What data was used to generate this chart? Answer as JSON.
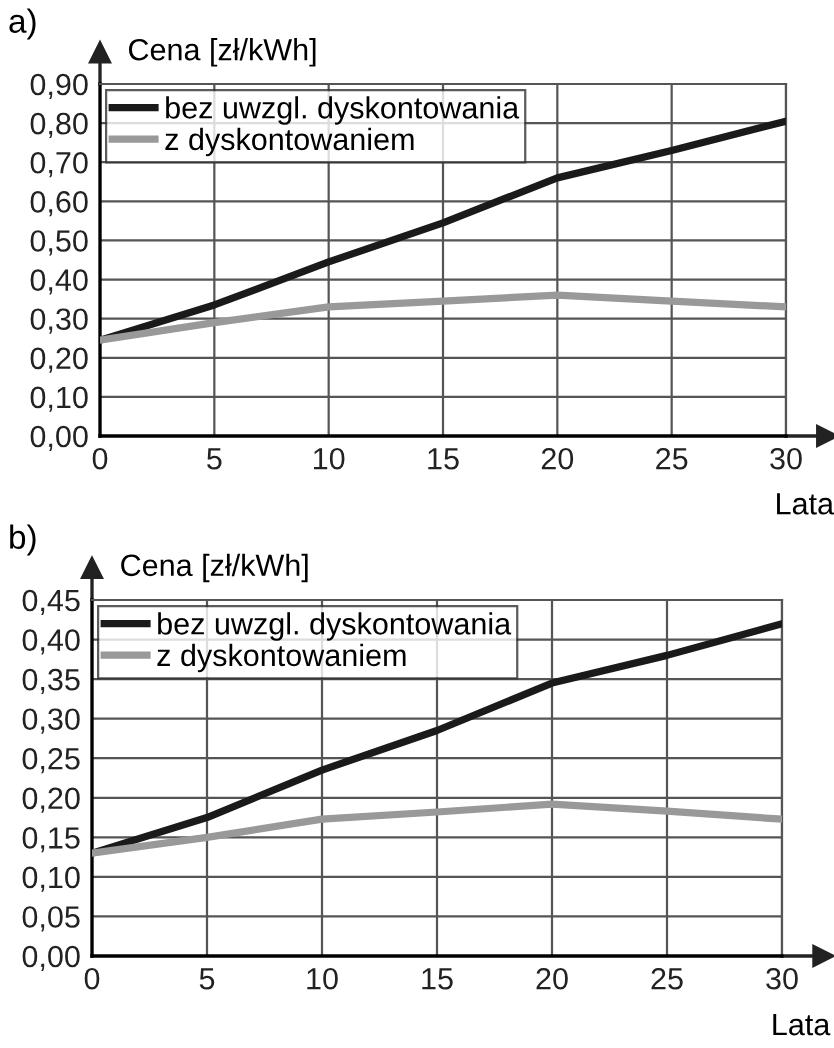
{
  "chart_data": [
    {
      "type": "line",
      "title": "a)",
      "ylabel": "Cena [zł/kWh]",
      "xlabel": "Lata",
      "x": [
        0,
        5,
        10,
        15,
        20,
        25,
        30
      ],
      "series": [
        {
          "name": "bez uwzgl. dyskontowania",
          "color": "#1a1a1a",
          "values": [
            0.245,
            0.335,
            0.445,
            0.545,
            0.66,
            0.73,
            0.805
          ]
        },
        {
          "name": "z dyskontowaniem",
          "color": "#999999",
          "values": [
            0.245,
            0.29,
            0.33,
            0.345,
            0.36,
            0.345,
            0.33
          ]
        }
      ],
      "xlim": [
        0,
        30
      ],
      "xticks": [
        0,
        5,
        10,
        15,
        20,
        25,
        30
      ],
      "ylim": [
        0,
        0.9
      ],
      "yticks": [
        {
          "value": 0,
          "label": "0,00"
        },
        {
          "value": 0.1,
          "label": "0,10"
        },
        {
          "value": 0.2,
          "label": "0,20"
        },
        {
          "value": 0.3,
          "label": "0,30"
        },
        {
          "value": 0.4,
          "label": "0,40"
        },
        {
          "value": 0.5,
          "label": "0,50"
        },
        {
          "value": 0.6,
          "label": "0,60"
        },
        {
          "value": 0.7,
          "label": "0,70"
        },
        {
          "value": 0.8,
          "label": "0,80"
        },
        {
          "value": 0.9,
          "label": "0,90"
        }
      ],
      "grid": true,
      "legend": "top left",
      "marker": "none",
      "line_style": "solid"
    },
    {
      "type": "line",
      "title": "b)",
      "ylabel": "Cena [zł/kWh]",
      "xlabel": "Lata",
      "x": [
        0,
        5,
        10,
        15,
        20,
        25,
        30
      ],
      "series": [
        {
          "name": "bez uwzgl. dyskontowania",
          "color": "#1a1a1a",
          "values": [
            0.13,
            0.175,
            0.235,
            0.285,
            0.345,
            0.38,
            0.42
          ]
        },
        {
          "name": "z dyskontowaniem",
          "color": "#999999",
          "values": [
            0.13,
            0.15,
            0.173,
            0.182,
            0.192,
            0.183,
            0.173
          ]
        }
      ],
      "xlim": [
        0,
        30
      ],
      "xticks": [
        0,
        5,
        10,
        15,
        20,
        25,
        30
      ],
      "ylim": [
        0,
        0.45
      ],
      "yticks": [
        {
          "value": 0,
          "label": "0,00"
        },
        {
          "value": 0.05,
          "label": "0,05"
        },
        {
          "value": 0.1,
          "label": "0,10"
        },
        {
          "value": 0.15,
          "label": "0,15"
        },
        {
          "value": 0.2,
          "label": "0,20"
        },
        {
          "value": 0.25,
          "label": "0,25"
        },
        {
          "value": 0.3,
          "label": "0,30"
        },
        {
          "value": 0.35,
          "label": "0,35"
        },
        {
          "value": 0.4,
          "label": "0,40"
        },
        {
          "value": 0.45,
          "label": "0,45"
        }
      ],
      "grid": true,
      "legend": "top left",
      "marker": "none",
      "line_style": "solid"
    }
  ]
}
